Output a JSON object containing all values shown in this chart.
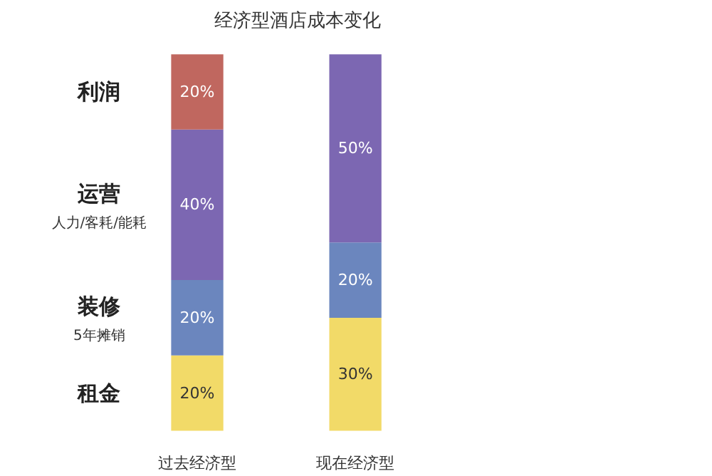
{
  "chart_data": {
    "type": "bar",
    "stacked": true,
    "title": "经济型酒店成本变化",
    "categories": [
      "过去经济型",
      "现在经济型"
    ],
    "series": [
      {
        "name": "租金",
        "color": "#f2da68",
        "values": [
          20,
          30
        ],
        "value_labels": [
          "20%",
          "30%"
        ]
      },
      {
        "name": "装修",
        "color": "#6b86be",
        "values": [
          20,
          20
        ],
        "value_labels": [
          "20%",
          "20%"
        ]
      },
      {
        "name": "运营",
        "color": "#7c67b2",
        "values": [
          40,
          50
        ],
        "value_labels": [
          "40%",
          "50%"
        ]
      },
      {
        "name": "利润",
        "color": "#c0675f",
        "values": [
          20,
          null
        ],
        "value_labels": [
          "20%",
          null
        ]
      }
    ],
    "annotations": [
      "人力/客耗/能耗",
      "5年摊销"
    ],
    "legend": "left",
    "grid": false
  }
}
